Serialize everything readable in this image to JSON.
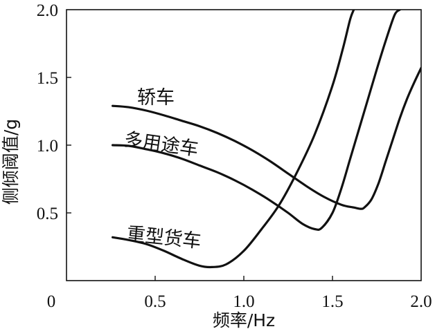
{
  "chart_data": {
    "type": "line",
    "title": "",
    "xlabel": "频率/Hz",
    "ylabel": "侧倾阈值/g",
    "xlim": [
      0,
      2.0
    ],
    "ylim": [
      0,
      2.0
    ],
    "x_ticks": [
      "0",
      "0.5",
      "1.0",
      "1.5",
      "2.0"
    ],
    "y_ticks": [
      "0.5",
      "1.0",
      "1.5",
      "2.0"
    ],
    "grid": false,
    "legend": "none",
    "line_color": "#111111",
    "series": [
      {
        "name": "轿车",
        "x": [
          0.26,
          0.35,
          0.45,
          0.55,
          0.65,
          0.75,
          0.85,
          0.95,
          1.05,
          1.15,
          1.25,
          1.35,
          1.45,
          1.55,
          1.62,
          1.66,
          1.68,
          1.72,
          1.76,
          1.8,
          1.84,
          1.88,
          1.92,
          1.96,
          2.0
        ],
        "y": [
          1.29,
          1.28,
          1.255,
          1.22,
          1.18,
          1.14,
          1.09,
          1.03,
          0.96,
          0.88,
          0.79,
          0.7,
          0.62,
          0.56,
          0.54,
          0.53,
          0.54,
          0.6,
          0.72,
          0.88,
          1.04,
          1.2,
          1.34,
          1.46,
          1.57
        ]
      },
      {
        "name": "多用途车",
        "x": [
          0.26,
          0.35,
          0.45,
          0.55,
          0.65,
          0.75,
          0.85,
          0.95,
          1.05,
          1.15,
          1.25,
          1.33,
          1.4,
          1.44,
          1.5,
          1.55,
          1.6,
          1.65,
          1.7,
          1.75,
          1.8,
          1.85,
          1.88
        ],
        "y": [
          1.0,
          0.995,
          0.97,
          0.94,
          0.9,
          0.85,
          0.8,
          0.74,
          0.67,
          0.59,
          0.5,
          0.42,
          0.38,
          0.39,
          0.5,
          0.68,
          0.9,
          1.12,
          1.34,
          1.56,
          1.77,
          1.96,
          2.0
        ]
      },
      {
        "name": "重型货车",
        "x": [
          0.26,
          0.35,
          0.45,
          0.55,
          0.65,
          0.75,
          0.82,
          0.9,
          1.0,
          1.1,
          1.2,
          1.3,
          1.4,
          1.5,
          1.56,
          1.6,
          1.62
        ],
        "y": [
          0.32,
          0.3,
          0.27,
          0.22,
          0.16,
          0.11,
          0.1,
          0.12,
          0.22,
          0.38,
          0.56,
          0.8,
          1.08,
          1.44,
          1.72,
          1.93,
          2.0
        ]
      }
    ]
  }
}
